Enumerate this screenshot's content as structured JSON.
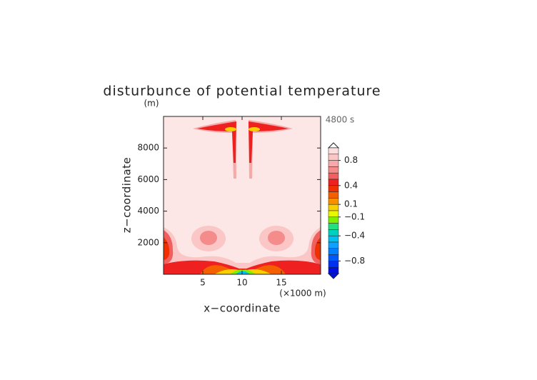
{
  "chart_data": {
    "type": "contour",
    "title": "disturbunce of potential temperature",
    "time_label": "4800 s",
    "x_label": "x−coordinate",
    "y_label": "z−coordinate",
    "x_unit": "(×1000 m)",
    "y_unit": "(m)",
    "xlim": [
      0,
      20
    ],
    "xticks": [
      5,
      10,
      15
    ],
    "ylim": [
      0,
      10000
    ],
    "yticks": [
      2000,
      4000,
      6000,
      8000
    ],
    "clim": [
      -1,
      1
    ],
    "level_colors": [
      "#fcdede",
      "#fac6c6",
      "#f7a8a8",
      "#f48c8c",
      "#f06060",
      "#ee2020",
      "#f03000",
      "#f46000",
      "#f89000",
      "#f8d000",
      "#e8f800",
      "#80f000",
      "#20e080",
      "#00d0c0",
      "#00c0f0",
      "#10a0ff",
      "#0080ff",
      "#0058f8",
      "#0030f0",
      "#0010e0"
    ],
    "colorbar_ticks": [
      0.8,
      0.4,
      0.1,
      {
        "value": -0.1,
        "label": "−0.1"
      },
      {
        "value": -0.4,
        "label": "−0.4"
      },
      {
        "value": -0.8,
        "label": "−0.8"
      }
    ]
  }
}
